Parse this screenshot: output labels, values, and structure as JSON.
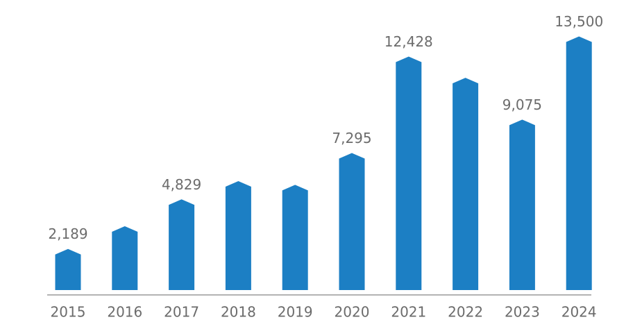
{
  "chart_data": {
    "type": "bar",
    "categories": [
      "2015",
      "2016",
      "2017",
      "2018",
      "2019",
      "2020",
      "2021",
      "2022",
      "2023",
      "2024"
    ],
    "values": [
      2189,
      3400,
      4829,
      5800,
      5600,
      7295,
      12428,
      11300,
      9075,
      13500
    ],
    "value_labels": [
      "2,189",
      null,
      "4,829",
      null,
      null,
      "7,295",
      "12,428",
      null,
      "9,075",
      "13,500"
    ],
    "color": "#1c7fc4",
    "ylim": [
      0,
      14000
    ],
    "grid": false
  }
}
